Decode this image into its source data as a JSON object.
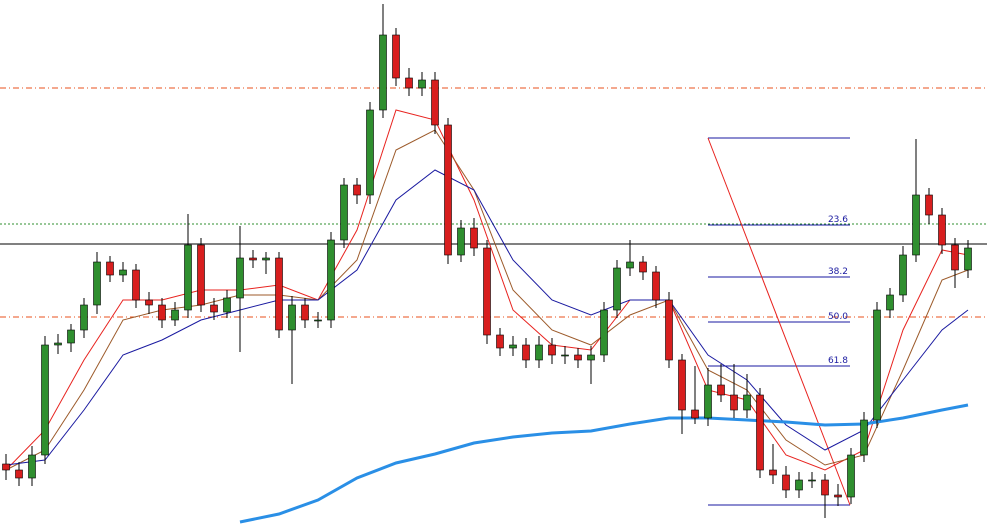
{
  "chart_data": {
    "type": "candlestick",
    "ylim": [
      0,
      524
    ],
    "bull_color": "#2f8f2f",
    "bear_color": "#d81e1e",
    "candles": [
      [
        60,
        70,
        44,
        54
      ],
      [
        54,
        62,
        38,
        46
      ],
      [
        46,
        78,
        38,
        69
      ],
      [
        69,
        188,
        60,
        179
      ],
      [
        179,
        190,
        170,
        181
      ],
      [
        181,
        200,
        172,
        194
      ],
      [
        194,
        226,
        186,
        219
      ],
      [
        219,
        272,
        210,
        262
      ],
      [
        262,
        268,
        242,
        249
      ],
      [
        249,
        262,
        242,
        254
      ],
      [
        254,
        260,
        216,
        224
      ],
      [
        224,
        232,
        210,
        219
      ],
      [
        219,
        226,
        196,
        204
      ],
      [
        204,
        222,
        198,
        214
      ],
      [
        214,
        310,
        206,
        279
      ],
      [
        279,
        286,
        212,
        219
      ],
      [
        219,
        226,
        204,
        212
      ],
      [
        212,
        234,
        206,
        226
      ],
      [
        226,
        298,
        172,
        266
      ],
      [
        266,
        274,
        256,
        264
      ],
      [
        264,
        272,
        250,
        266
      ],
      [
        266,
        272,
        186,
        194
      ],
      [
        194,
        228,
        140,
        219
      ],
      [
        219,
        226,
        196,
        204
      ],
      [
        204,
        212,
        196,
        204
      ],
      [
        204,
        292,
        196,
        284
      ],
      [
        284,
        346,
        276,
        339
      ],
      [
        339,
        346,
        320,
        329
      ],
      [
        329,
        422,
        320,
        414
      ],
      [
        414,
        520,
        406,
        489
      ],
      [
        489,
        496,
        438,
        446
      ],
      [
        446,
        456,
        428,
        436
      ],
      [
        436,
        452,
        428,
        444
      ],
      [
        444,
        452,
        390,
        399
      ],
      [
        399,
        406,
        260,
        269
      ],
      [
        269,
        304,
        262,
        296
      ],
      [
        296,
        306,
        268,
        276
      ],
      [
        276,
        284,
        180,
        189
      ],
      [
        189,
        196,
        168,
        176
      ],
      [
        176,
        188,
        168,
        179
      ],
      [
        179,
        186,
        156,
        164
      ],
      [
        164,
        188,
        156,
        179
      ],
      [
        179,
        186,
        160,
        169
      ],
      [
        169,
        178,
        160,
        169
      ],
      [
        169,
        176,
        156,
        164
      ],
      [
        164,
        178,
        140,
        169
      ],
      [
        169,
        222,
        162,
        214
      ],
      [
        214,
        264,
        206,
        256
      ],
      [
        256,
        284,
        248,
        262
      ],
      [
        262,
        268,
        244,
        252
      ],
      [
        252,
        258,
        216,
        224
      ],
      [
        224,
        232,
        156,
        164
      ],
      [
        164,
        170,
        90,
        114
      ],
      [
        114,
        158,
        100,
        106
      ],
      [
        106,
        156,
        98,
        139
      ],
      [
        139,
        160,
        122,
        129
      ],
      [
        129,
        160,
        106,
        114
      ],
      [
        114,
        150,
        106,
        129
      ],
      [
        129,
        136,
        46,
        54
      ],
      [
        54,
        80,
        40,
        49
      ],
      [
        49,
        58,
        26,
        34
      ],
      [
        34,
        52,
        26,
        44
      ],
      [
        44,
        52,
        36,
        44
      ],
      [
        44,
        50,
        6,
        29
      ],
      [
        29,
        40,
        18,
        27
      ],
      [
        27,
        76,
        20,
        69
      ],
      [
        69,
        112,
        62,
        104
      ],
      [
        104,
        222,
        96,
        214
      ],
      [
        214,
        236,
        206,
        229
      ],
      [
        229,
        278,
        222,
        269
      ],
      [
        269,
        385,
        262,
        329
      ],
      [
        329,
        336,
        300,
        309
      ],
      [
        309,
        316,
        270,
        279
      ],
      [
        279,
        286,
        236,
        254
      ],
      [
        254,
        284,
        246,
        276
      ]
    ],
    "ma_index": [
      0,
      3,
      6,
      9,
      12,
      15,
      18,
      21,
      24,
      27,
      30,
      33,
      36,
      39,
      42,
      45,
      48,
      51,
      54,
      57,
      60,
      63,
      66,
      69,
      72,
      74
    ],
    "series": [
      {
        "color": "#e8231f",
        "width": 1,
        "values": [
          54,
          94,
          164,
          224,
          224,
          234,
          234,
          239,
          224,
          294,
          414,
          404,
          324,
          214,
          179,
          174,
          224,
          224,
          134,
          124,
          69,
          54,
          74,
          194,
          274,
          269
        ]
      },
      {
        "color": "#9c5a2a",
        "width": 1,
        "values": [
          54,
          74,
          134,
          204,
          214,
          219,
          229,
          229,
          224,
          264,
          374,
          394,
          334,
          234,
          194,
          179,
          209,
          224,
          154,
          134,
          84,
          59,
          69,
          154,
          244,
          254
        ]
      },
      {
        "color": "#1a1aa0",
        "width": 1,
        "values": [
          59,
          64,
          114,
          169,
          184,
          204,
          214,
          224,
          224,
          254,
          324,
          354,
          334,
          264,
          224,
          209,
          224,
          224,
          169,
          144,
          99,
          74,
          94,
          144,
          194,
          214
        ]
      },
      {
        "color": "#2a8fe6",
        "width": 3,
        "values": [
          null,
          null,
          null,
          null,
          null,
          null,
          2,
          10,
          24,
          46,
          61,
          70,
          81,
          87,
          91,
          93,
          100,
          106,
          106,
          104,
          102,
          99,
          100,
          106,
          114,
          119
        ]
      }
    ],
    "hlines": [
      {
        "value": 436,
        "color": "#e8501e",
        "style": "dashdot"
      },
      {
        "value": 207,
        "color": "#e8501e",
        "style": "dashdot"
      },
      {
        "value": 300,
        "color": "#2f8f2f",
        "style": "dot"
      },
      {
        "value": 280,
        "color": "#000000",
        "style": "solid"
      }
    ],
    "fib": {
      "color": "#1a1aa0",
      "line_color": "#e8231f",
      "levels": [
        386,
        299,
        247,
        202,
        158,
        19
      ],
      "labels": [
        null,
        "23.6",
        "38.2",
        "50.0",
        "61.8",
        null
      ]
    }
  }
}
